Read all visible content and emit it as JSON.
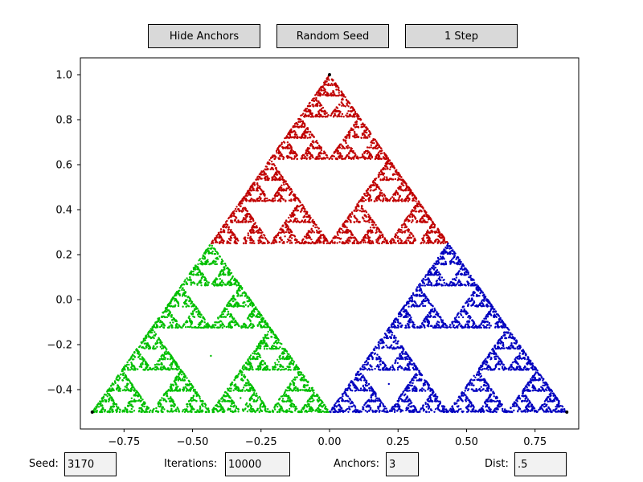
{
  "buttons": {
    "hide_anchors": "Hide Anchors",
    "random_seed": "Random Seed",
    "one_step": "1 Step"
  },
  "fields": {
    "seed": {
      "label": "Seed:",
      "value": "3170"
    },
    "iterations": {
      "label": "Iterations:",
      "value": "10000"
    },
    "anchors": {
      "label": "Anchors:",
      "value": "3"
    },
    "dist": {
      "label": "Dist:",
      "value": ".5"
    }
  },
  "chart_data": {
    "type": "scatter",
    "title": "",
    "xlabel": "",
    "ylabel": "",
    "xlim": [
      -0.9093,
      0.9093
    ],
    "ylim": [
      -0.575,
      1.075
    ],
    "grid": false,
    "x_ticks": [
      -0.75,
      -0.5,
      -0.25,
      0.0,
      0.25,
      0.5,
      0.75
    ],
    "x_tick_labels": [
      "−0.75",
      "−0.50",
      "−0.25",
      "0.00",
      "0.25",
      "0.50",
      "0.75"
    ],
    "y_ticks": [
      -0.4,
      -0.2,
      0.0,
      0.2,
      0.4,
      0.6,
      0.8,
      1.0
    ],
    "y_tick_labels": [
      "−0.4",
      "−0.2",
      "0.0",
      "0.2",
      "0.4",
      "0.6",
      "0.8",
      "1.0"
    ],
    "anchors": [
      {
        "x": 0.0,
        "y": 1.0
      },
      {
        "x": -0.866,
        "y": -0.5
      },
      {
        "x": 0.866,
        "y": -0.5
      }
    ],
    "series": [
      {
        "color": "#c00000",
        "anchor_index": 0
      },
      {
        "color": "#00bf00",
        "anchor_index": 1
      },
      {
        "color": "#0000bf",
        "anchor_index": 2
      }
    ],
    "anchor_color": "#000000",
    "seed": 3170,
    "iterations": 10000,
    "anchor_count": 3,
    "dist": 0.5
  }
}
